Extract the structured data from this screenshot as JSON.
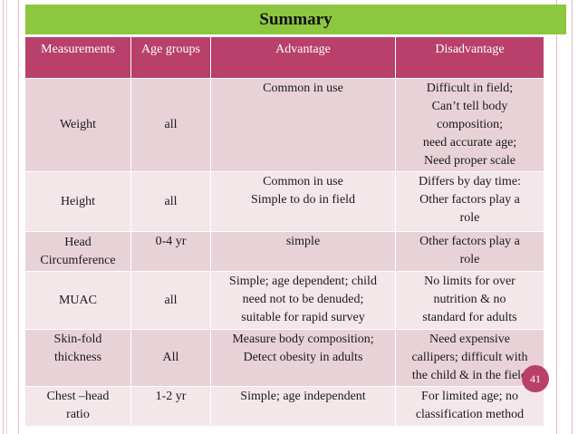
{
  "title": "Summary",
  "colors": {
    "accent": "#b8406a",
    "title_bar": "#8dc63f",
    "row_odd": "#e8d2d8",
    "row_even": "#f3e7ea"
  },
  "table": {
    "headers": [
      "Measurements",
      "Age groups",
      "Advantage",
      "Disadvantage"
    ],
    "rows": [
      {
        "measurement": "Weight",
        "age": "all",
        "advantage": [
          "Common in use"
        ],
        "disadvantage": [
          "Difficult in field;",
          "Can’t tell body",
          "composition;",
          "need accurate age;",
          "Need proper scale"
        ]
      },
      {
        "measurement": "Height",
        "age": "all",
        "advantage": [
          "Common in use",
          "Simple to do in field"
        ],
        "disadvantage": [
          "Differs by day time:",
          "Other factors play a",
          "role"
        ]
      },
      {
        "measurement": [
          "Head",
          "Circumference"
        ],
        "age": "0-4 yr",
        "advantage": [
          "simple"
        ],
        "disadvantage": [
          "Other factors play a",
          "role"
        ]
      },
      {
        "measurement": "MUAC",
        "age": "all",
        "advantage": [
          "Simple; age dependent; child",
          "need not to be denuded;",
          "suitable for rapid survey"
        ],
        "disadvantage": [
          "No limits for over",
          "nutrition & no",
          "standard for adults"
        ]
      },
      {
        "measurement": [
          "Skin-fold",
          "thickness"
        ],
        "age": "All",
        "advantage": [
          "Measure body composition;",
          "Detect obesity in adults"
        ],
        "disadvantage": [
          "Need expensive",
          "callipers; difficult with",
          "the child & in the field"
        ]
      },
      {
        "measurement": [
          "Chest –head",
          "ratio"
        ],
        "age": "1-2 yr",
        "advantage": [
          "Simple; age independent"
        ],
        "disadvantage": [
          "For limited age; no",
          "classification method"
        ]
      }
    ]
  },
  "page_number": "41"
}
